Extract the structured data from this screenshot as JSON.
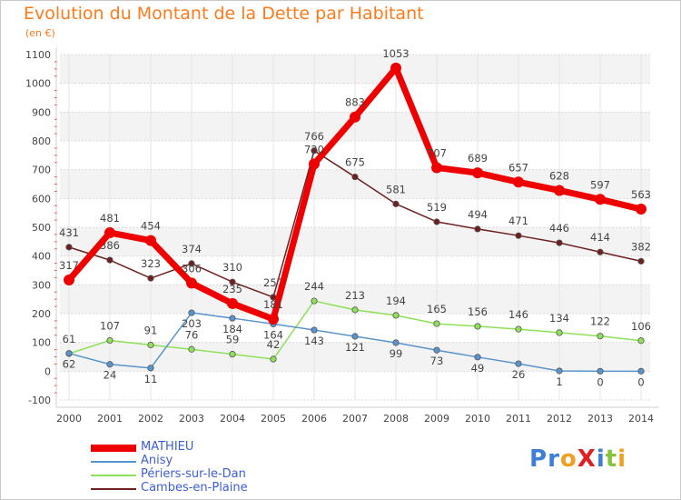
{
  "title": "Evolution du Montant de la Dette par Habitant",
  "subtitle": "(en €)",
  "logo": {
    "text": "ProXiti",
    "letters": [
      {
        "ch": "P",
        "color": "#3d7fd6"
      },
      {
        "ch": "r",
        "color": "#3d7fd6"
      },
      {
        "ch": "o",
        "color": "#f0a020"
      },
      {
        "ch": "X",
        "color": "#e02020"
      },
      {
        "ch": "i",
        "color": "#3d7fd6"
      },
      {
        "ch": "t",
        "color": "#88c240"
      },
      {
        "ch": "i",
        "color": "#f0a020"
      }
    ]
  },
  "chart_data": {
    "type": "line",
    "title": "Evolution du Montant de la Dette par Habitant",
    "subtitle": "(en €)",
    "x": [
      "2000",
      "2001",
      "2002",
      "2003",
      "2004",
      "2005",
      "2006",
      "2007",
      "2008",
      "2009",
      "2010",
      "2011",
      "2012",
      "2013",
      "2014"
    ],
    "ylim": [
      -100,
      1100
    ],
    "yticks": [
      "-100",
      "0",
      "100",
      "200",
      "300",
      "400",
      "500",
      "600",
      "700",
      "800",
      "900",
      "1000",
      "1100"
    ],
    "grid": true,
    "legend_position": "bottom",
    "series": [
      {
        "name": "Cambes-en-Plaine",
        "color": "#6e1f1f",
        "values": [
          431,
          386,
          323,
          374,
          310,
          257,
          766,
          675,
          581,
          519,
          494,
          471,
          446,
          414,
          382
        ]
      },
      {
        "name": "Périers-sur-le-Dan",
        "color": "#8ee05a",
        "values": [
          61,
          107,
          91,
          76,
          59,
          42,
          244,
          213,
          194,
          165,
          156,
          146,
          134,
          122,
          106
        ]
      },
      {
        "name": "Anisy",
        "color": "#5a94cc",
        "values": [
          62,
          24,
          11,
          203,
          184,
          164,
          143,
          121,
          99,
          73,
          49,
          26,
          1,
          0,
          0
        ]
      },
      {
        "name": "MATHIEU",
        "color": "#ee0000",
        "values": [
          317,
          481,
          454,
          306,
          235,
          181,
          720,
          883,
          1053,
          707,
          689,
          657,
          628,
          597,
          563
        ]
      }
    ],
    "legend": [
      "MATHIEU",
      "Anisy",
      "Périers-sur-le-Dan",
      "Cambes-en-Plaine"
    ]
  }
}
